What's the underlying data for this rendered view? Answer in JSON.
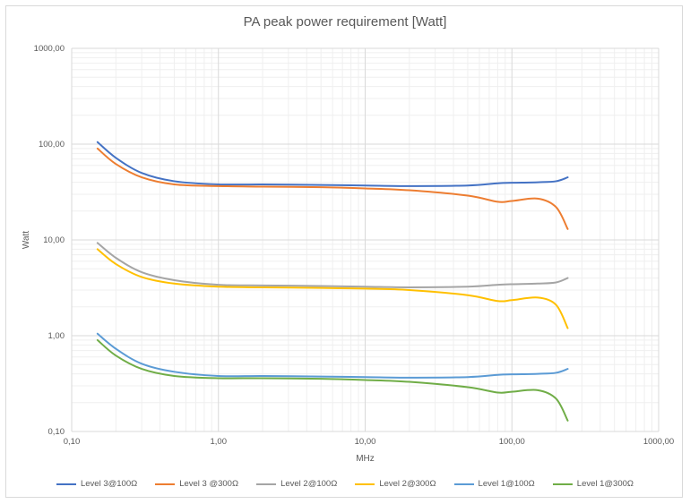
{
  "chart_data": {
    "type": "line",
    "title": "PA peak power requirement [Watt]",
    "xlabel": "MHz",
    "ylabel": "Watt",
    "xscale": "log",
    "yscale": "log",
    "xlim": [
      0.1,
      1000
    ],
    "ylim": [
      0.1,
      1000
    ],
    "x_ticks": [
      0.1,
      1,
      10,
      100,
      1000
    ],
    "x_tick_labels": [
      "0,10",
      "1,00",
      "10,00",
      "100,00",
      "1000,00"
    ],
    "y_ticks": [
      0.1,
      1,
      10,
      100,
      1000
    ],
    "y_tick_labels": [
      "0,10",
      "1,00",
      "10,00",
      "100,00",
      "1000,00"
    ],
    "grid": true,
    "legend_position": "bottom",
    "x": [
      0.15,
      0.2,
      0.3,
      0.5,
      1,
      2,
      5,
      10,
      20,
      50,
      80,
      100,
      150,
      200,
      240
    ],
    "series": [
      {
        "name": "Level 3@100Ω",
        "color": "#4472C4",
        "values": [
          105,
          72,
          50,
          41,
          38,
          38,
          37.5,
          37,
          36.5,
          37,
          39,
          39.5,
          40,
          41,
          45
        ]
      },
      {
        "name": "Level 3 @300Ω",
        "color": "#ED7D31",
        "values": [
          90,
          62,
          45,
          38,
          36.5,
          36,
          35.5,
          34.5,
          33,
          29,
          25,
          25.5,
          27,
          22,
          13
        ]
      },
      {
        "name": "Level 2@100Ω",
        "color": "#A5A5A5",
        "values": [
          9.3,
          6.5,
          4.6,
          3.8,
          3.4,
          3.35,
          3.3,
          3.25,
          3.2,
          3.25,
          3.4,
          3.45,
          3.5,
          3.6,
          4.0
        ]
      },
      {
        "name": "Level 2@300Ω",
        "color": "#FFC000",
        "values": [
          8.0,
          5.6,
          4.1,
          3.5,
          3.25,
          3.2,
          3.15,
          3.1,
          3.0,
          2.65,
          2.3,
          2.35,
          2.5,
          2.1,
          1.2
        ]
      },
      {
        "name": "Level 1@100Ω",
        "color": "#5B9BD5",
        "values": [
          1.05,
          0.73,
          0.51,
          0.42,
          0.38,
          0.38,
          0.375,
          0.37,
          0.365,
          0.37,
          0.39,
          0.395,
          0.4,
          0.41,
          0.45
        ]
      },
      {
        "name": "Level 1@300Ω",
        "color": "#70AD47",
        "values": [
          0.9,
          0.62,
          0.45,
          0.38,
          0.36,
          0.36,
          0.355,
          0.345,
          0.33,
          0.29,
          0.255,
          0.26,
          0.27,
          0.22,
          0.13
        ]
      }
    ]
  }
}
